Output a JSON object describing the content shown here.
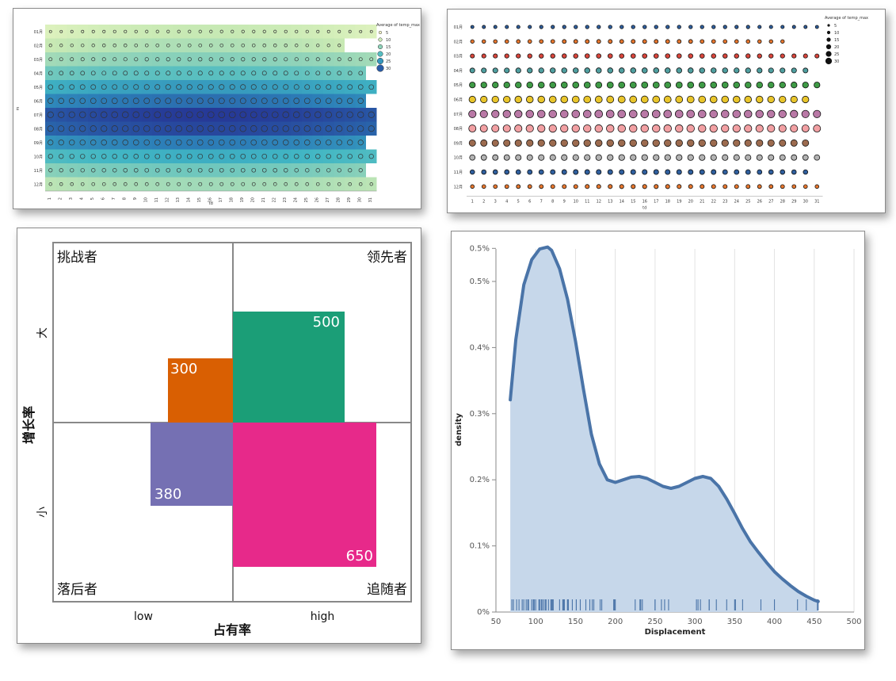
{
  "chart_data": [
    {
      "type": "heatmap",
      "rows": [
        "01月",
        "02月",
        "03月",
        "04月",
        "05月",
        "06月",
        "07月",
        "08月",
        "09月",
        "10月",
        "11月",
        "12月"
      ],
      "columns": [
        1,
        2,
        3,
        4,
        5,
        6,
        7,
        8,
        9,
        10,
        11,
        12,
        13,
        14,
        15,
        16,
        17,
        18,
        19,
        20,
        21,
        22,
        23,
        24,
        25,
        26,
        27,
        28,
        29,
        30,
        31
      ],
      "days_in_month": [
        31,
        28,
        31,
        30,
        31,
        30,
        31,
        31,
        30,
        31,
        30,
        31
      ],
      "monthly_avg_temp_max": [
        9,
        11,
        14,
        18,
        23,
        27,
        31,
        30,
        26,
        21,
        16,
        12
      ],
      "xlabel": "td",
      "ylabel": "m",
      "legend": {
        "title": "Average of temp_max",
        "values": [
          5,
          10,
          15,
          20,
          25,
          30
        ],
        "position": "top-right"
      }
    },
    {
      "type": "scatter",
      "rows": [
        "01月",
        "02月",
        "03月",
        "04月",
        "05月",
        "06月",
        "07月",
        "08月",
        "09月",
        "10月",
        "11月",
        "12月"
      ],
      "columns": [
        1,
        2,
        3,
        4,
        5,
        6,
        7,
        8,
        9,
        10,
        11,
        12,
        13,
        14,
        15,
        16,
        17,
        18,
        19,
        20,
        21,
        22,
        23,
        24,
        25,
        26,
        27,
        28,
        29,
        30,
        31
      ],
      "days_in_month": [
        31,
        28,
        31,
        30,
        31,
        30,
        31,
        31,
        30,
        31,
        30,
        31
      ],
      "row_colors": [
        "#2f5f9e",
        "#e8772e",
        "#d9453b",
        "#4f9fa0",
        "#3f9b46",
        "#e9c52b",
        "#b979a6",
        "#f2a0a3",
        "#9c6b4f",
        "#b3b3b3",
        "#2f5f9e",
        "#e8772e"
      ],
      "monthly_avg_temp_max": [
        9,
        11,
        14,
        18,
        23,
        27,
        31,
        30,
        26,
        21,
        16,
        12
      ],
      "xlabel": "td",
      "legend": {
        "title": "Average of temp_max",
        "values": [
          5,
          10,
          15,
          20,
          25,
          30
        ],
        "position": "top-right"
      }
    },
    {
      "type": "bar",
      "quadrants": {
        "top_left": "挑战者",
        "top_right": "领先者",
        "bottom_left": "落后者",
        "bottom_right": "追随者"
      },
      "xlabel": "占有率",
      "ylabel": "增长率",
      "x_ticks": [
        "low",
        "high"
      ],
      "y_ticks": [
        "大",
        "小"
      ],
      "blocks": [
        {
          "value": 300,
          "quadrant": "top_left",
          "color": "#d95f02",
          "label": "300"
        },
        {
          "value": 500,
          "quadrant": "top_right",
          "color": "#1b9e77",
          "label": "500"
        },
        {
          "value": 380,
          "quadrant": "bottom_left",
          "color": "#7570b3",
          "label": "380"
        },
        {
          "value": 650,
          "quadrant": "bottom_right",
          "color": "#e7298a",
          "label": "650"
        }
      ]
    },
    {
      "type": "area",
      "xlabel": "Displacement",
      "ylabel": "density",
      "xlim": [
        50,
        500
      ],
      "ylim": [
        0,
        0.005
      ],
      "x_ticks": [
        "50",
        "100",
        "150",
        "200",
        "250",
        "300",
        "350",
        "400",
        "450",
        "500"
      ],
      "y_ticks": [
        "0%",
        "0.1%",
        "0.2%",
        "0.3%",
        "0.4%",
        "0.5%",
        "0.5%"
      ],
      "y_tick_values": [
        0,
        0.001,
        0.002,
        0.003,
        0.004,
        0.005,
        0.0055
      ],
      "x": [
        68,
        75,
        85,
        95,
        105,
        115,
        120,
        130,
        140,
        150,
        160,
        170,
        180,
        190,
        200,
        210,
        220,
        230,
        240,
        250,
        260,
        270,
        280,
        290,
        300,
        310,
        320,
        330,
        340,
        350,
        360,
        370,
        380,
        390,
        400,
        410,
        420,
        430,
        440,
        450,
        455
      ],
      "y": [
        0.00321,
        0.00412,
        0.00495,
        0.00533,
        0.00549,
        0.00552,
        0.00547,
        0.00519,
        0.00473,
        0.0041,
        0.00337,
        0.00269,
        0.00224,
        0.002,
        0.00196,
        0.002,
        0.00204,
        0.00205,
        0.00202,
        0.00196,
        0.0019,
        0.00187,
        0.0019,
        0.00196,
        0.00202,
        0.00205,
        0.00202,
        0.0019,
        0.00171,
        0.00149,
        0.00126,
        0.00106,
        0.0009,
        0.00075,
        0.00061,
        0.0005,
        0.0004,
        0.00031,
        0.00024,
        0.00018,
        0.00016
      ],
      "rug": [
        70,
        72,
        76,
        79,
        83,
        85,
        88,
        90,
        91,
        95,
        97,
        98,
        98,
        100,
        104,
        105,
        107,
        108,
        110,
        112,
        113,
        116,
        119,
        120,
        121,
        122,
        130,
        134,
        135,
        136,
        140,
        140,
        141,
        146,
        151,
        151,
        156,
        163,
        168,
        171,
        173,
        181,
        183,
        198,
        199,
        200,
        225,
        231,
        232,
        234,
        250,
        250,
        258,
        262,
        267,
        302,
        304,
        307,
        318,
        318,
        327,
        340,
        350,
        351,
        360,
        383,
        400,
        429,
        440,
        454,
        455
      ]
    }
  ]
}
